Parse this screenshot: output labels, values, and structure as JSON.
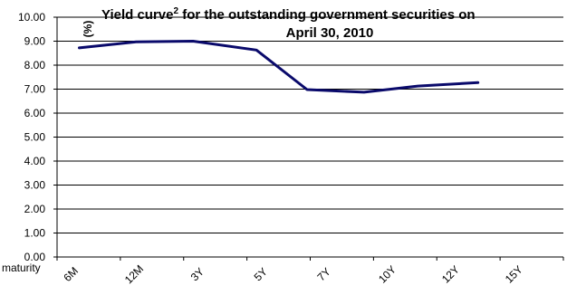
{
  "chart_data": {
    "type": "line",
    "title": "Yield curve",
    "title_superscript": "2",
    "title_rest": " for the outstanding government securities on",
    "subtitle": "April 30, 2010",
    "ylabel": "(%)",
    "xlabel": "maturity",
    "ylim": [
      0,
      10
    ],
    "y_ticks": [
      "0.00",
      "1.00",
      "2.00",
      "3.00",
      "4.00",
      "5.00",
      "6.00",
      "7.00",
      "8.00",
      "9.00",
      "10.00"
    ],
    "categories": [
      "6M",
      "12M",
      "3Y",
      "5Y",
      "7Y",
      "10Y",
      "12Y",
      "15Y"
    ],
    "grid": true,
    "line_color": "#0a0a6b",
    "series": [
      {
        "x": [
          0.35,
          1.25,
          2.15,
          3.15,
          3.95,
          4.85,
          5.7,
          6.65
        ],
        "values": [
          8.72,
          8.97,
          9.0,
          8.63,
          6.98,
          6.87,
          7.13,
          7.27
        ]
      }
    ]
  }
}
